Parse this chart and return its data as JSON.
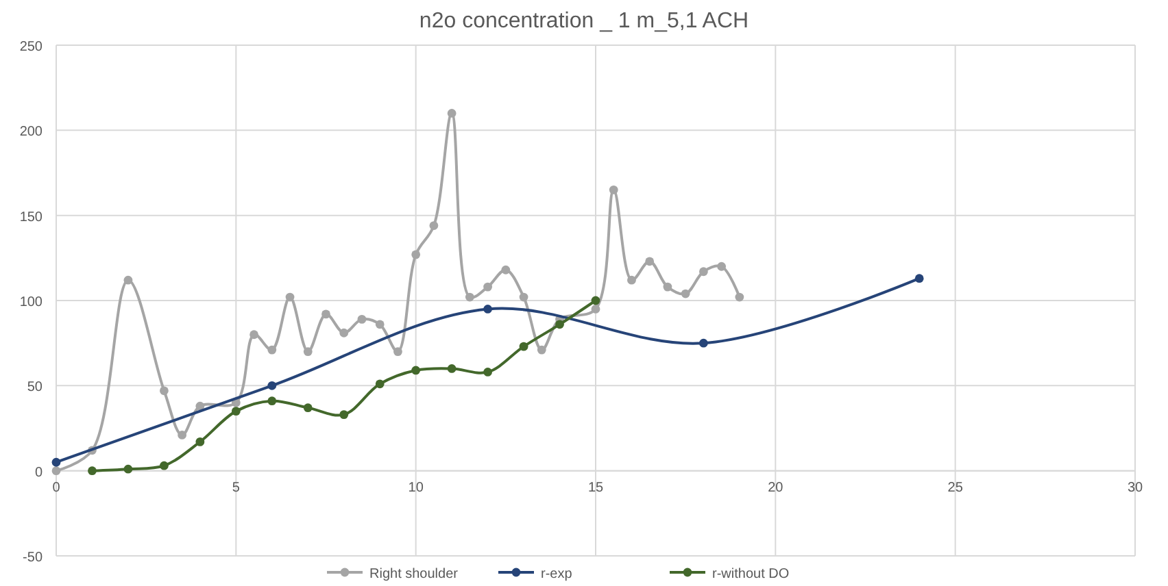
{
  "chart_data": {
    "type": "line",
    "title": "n2o concentration _ 1 m_5,1 ACH",
    "series": [
      {
        "name": "Right shoulder",
        "color": "#a5a5a5",
        "x": [
          0,
          1,
          2,
          3,
          3.5,
          4,
          5,
          5.5,
          6,
          6.5,
          7,
          7.5,
          8,
          8.5,
          9,
          9.5,
          10,
          10.5,
          11,
          11.5,
          12,
          12.5,
          13,
          13.5,
          14,
          15,
          15.5,
          16,
          16.5,
          17,
          17.5,
          18,
          18.5,
          19
        ],
        "values": [
          0,
          12,
          112,
          47,
          21,
          38,
          40,
          80,
          71,
          102,
          70,
          92,
          81,
          89,
          86,
          70,
          127,
          144,
          210,
          102,
          108,
          118,
          102,
          71,
          89,
          95,
          165,
          112,
          123,
          108,
          104,
          117,
          120,
          102
        ]
      },
      {
        "name": "r-exp",
        "color": "#264478",
        "x": [
          0,
          6,
          12,
          18,
          24
        ],
        "values": [
          5,
          50,
          95,
          75,
          113
        ]
      },
      {
        "name": "r-without DO",
        "color": "#43682b",
        "x": [
          1,
          2,
          3,
          4,
          5,
          6,
          7,
          8,
          9,
          10,
          11,
          12,
          13,
          14,
          15
        ],
        "values": [
          0,
          1,
          3,
          17,
          35,
          41,
          37,
          33,
          51,
          59,
          60,
          58,
          73,
          86,
          100
        ]
      }
    ],
    "xlim": [
      0,
      30
    ],
    "xticks": [
      0,
      5,
      10,
      15,
      20,
      25,
      30
    ],
    "ylim": [
      -50,
      250
    ],
    "yticks": [
      -50,
      0,
      50,
      100,
      150,
      200,
      250
    ],
    "grid": true,
    "legend": "bottom",
    "marker": "circle",
    "line_style": "solid"
  }
}
